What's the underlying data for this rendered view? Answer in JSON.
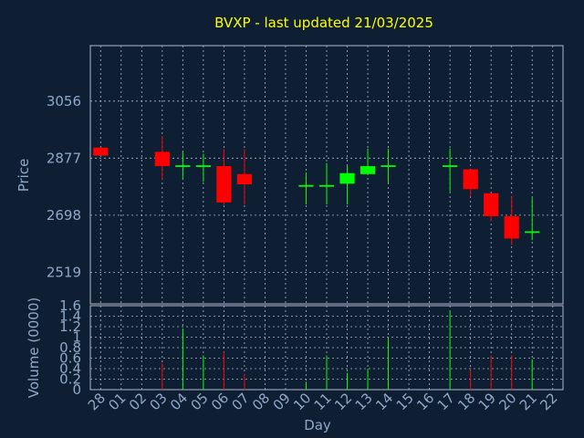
{
  "chart_data": [
    {
      "type": "candlestick",
      "title": "BVXP - last updated 21/03/2025",
      "ylabel": "Price",
      "y_ticks": [
        2519,
        2698,
        2877,
        3056
      ],
      "ylim": [
        2420,
        3230
      ],
      "up_color": "#00ff00",
      "down_color": "#ff0000",
      "grid": true,
      "candles": [
        {
          "day": "28",
          "open": 2910,
          "high": 2910,
          "low": 2885,
          "close": 2885
        },
        {
          "day": "03",
          "open": 2897,
          "high": 2946,
          "low": 2810,
          "close": 2852
        },
        {
          "day": "04",
          "open": 2852,
          "high": 2897,
          "low": 2810,
          "close": 2852
        },
        {
          "day": "05",
          "open": 2852,
          "high": 2891,
          "low": 2803,
          "close": 2852
        },
        {
          "day": "06",
          "open": 2852,
          "high": 2905,
          "low": 2732,
          "close": 2738
        },
        {
          "day": "07",
          "open": 2827,
          "high": 2905,
          "low": 2732,
          "close": 2795
        },
        {
          "day": "10",
          "open": 2790,
          "high": 2832,
          "low": 2732,
          "close": 2790
        },
        {
          "day": "11",
          "open": 2790,
          "high": 2862,
          "low": 2732,
          "close": 2790
        },
        {
          "day": "12",
          "open": 2797,
          "high": 2852,
          "low": 2732,
          "close": 2830
        },
        {
          "day": "13",
          "open": 2827,
          "high": 2907,
          "low": 2827,
          "close": 2852
        },
        {
          "day": "14",
          "open": 2852,
          "high": 2907,
          "low": 2800,
          "close": 2852
        },
        {
          "day": "17",
          "open": 2852,
          "high": 2907,
          "low": 2773,
          "close": 2852
        },
        {
          "day": "18",
          "open": 2842,
          "high": 2842,
          "low": 2757,
          "close": 2780
        },
        {
          "day": "19",
          "open": 2767,
          "high": 2767,
          "low": 2680,
          "close": 2695
        },
        {
          "day": "20",
          "open": 2695,
          "high": 2757,
          "low": 2605,
          "close": 2625
        },
        {
          "day": "21",
          "open": 2642,
          "high": 2752,
          "low": 2620,
          "close": 2645
        }
      ]
    },
    {
      "type": "bar",
      "xlabel": "Day",
      "ylabel": "Volume (0000)",
      "y_ticks": [
        0,
        0.2,
        0.4,
        0.6,
        0.8,
        1,
        1.2,
        1.4,
        1.6
      ],
      "ylim": [
        0,
        1.6
      ],
      "x_ticks": [
        "28",
        "01",
        "02",
        "03",
        "04",
        "05",
        "06",
        "07",
        "08",
        "09",
        "10",
        "11",
        "12",
        "13",
        "14",
        "15",
        "16",
        "17",
        "18",
        "19",
        "20",
        "21",
        "22"
      ],
      "values": [
        {
          "day": "03",
          "value": 0.5,
          "color": "#ff0000"
        },
        {
          "day": "04",
          "value": 1.15,
          "color": "#00ff00"
        },
        {
          "day": "05",
          "value": 0.65,
          "color": "#00ff00"
        },
        {
          "day": "06",
          "value": 0.72,
          "color": "#ff0000"
        },
        {
          "day": "07",
          "value": 0.3,
          "color": "#ff0000"
        },
        {
          "day": "10",
          "value": 0.15,
          "color": "#00ff00"
        },
        {
          "day": "11",
          "value": 0.65,
          "color": "#00ff00"
        },
        {
          "day": "12",
          "value": 0.32,
          "color": "#00ff00"
        },
        {
          "day": "13",
          "value": 0.4,
          "color": "#00ff00"
        },
        {
          "day": "14",
          "value": 0.98,
          "color": "#00ff00"
        },
        {
          "day": "17",
          "value": 1.5,
          "color": "#00ff00"
        },
        {
          "day": "18",
          "value": 0.38,
          "color": "#ff0000"
        },
        {
          "day": "19",
          "value": 0.65,
          "color": "#ff0000"
        },
        {
          "day": "20",
          "value": 0.65,
          "color": "#ff0000"
        },
        {
          "day": "21",
          "value": 0.58,
          "color": "#00ff00"
        }
      ]
    }
  ]
}
